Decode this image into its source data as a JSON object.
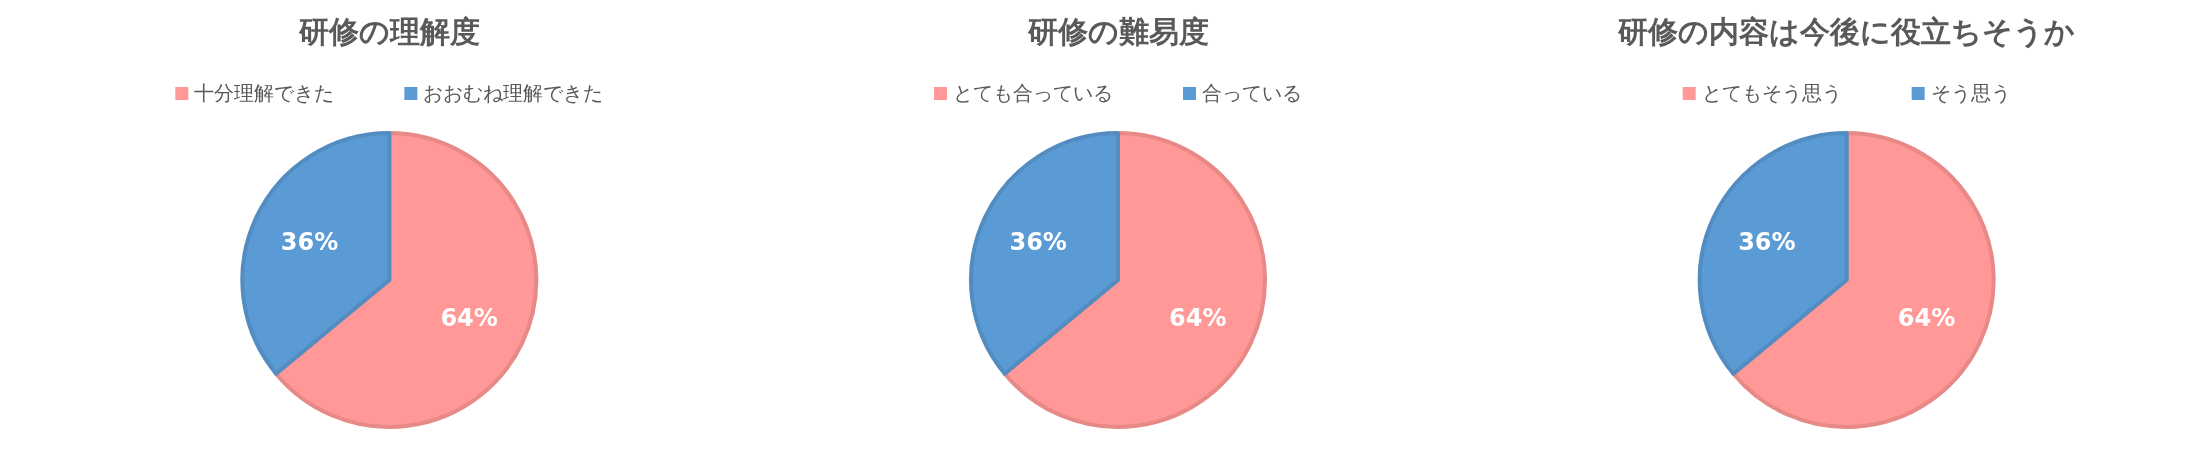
{
  "chart_data": [
    {
      "type": "pie",
      "title": "研修の理解度",
      "categories": [
        "十分理解できた",
        "おおむね理解できた"
      ],
      "values": [
        64,
        36
      ],
      "colors": [
        "#ff9896",
        "#5b9bd5"
      ],
      "value_labels": [
        "64%",
        "36%"
      ],
      "legend": "top"
    },
    {
      "type": "pie",
      "title": "研修の難易度",
      "categories": [
        "とても合っている",
        "合っている"
      ],
      "values": [
        64,
        36
      ],
      "colors": [
        "#ff9896",
        "#5b9bd5"
      ],
      "value_labels": [
        "64%",
        "36%"
      ],
      "legend": "top"
    },
    {
      "type": "pie",
      "title": "研修の内容は今後に役立ちそうか",
      "categories": [
        "とてもそう思う",
        "そう思う"
      ],
      "values": [
        64,
        36
      ],
      "colors": [
        "#ff9896",
        "#5b9bd5"
      ],
      "value_labels": [
        "64%",
        "36%"
      ],
      "legend": "top"
    }
  ]
}
